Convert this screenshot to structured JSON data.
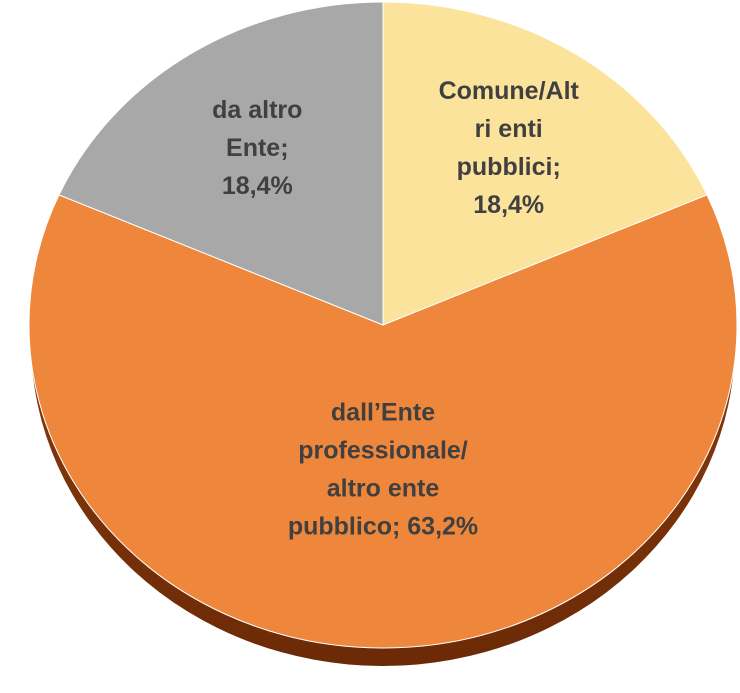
{
  "chart_data": {
    "type": "pie",
    "labels": [
      [
        "Comune/Alt",
        "ri enti",
        "pubblici;",
        "18,4%"
      ],
      [
        "dall’Ente",
        "professionale/",
        "altro ente",
        "pubblico; 63,2%"
      ],
      [
        "da altro",
        "Ente;",
        "18,4%"
      ]
    ],
    "values": [
      18.4,
      63.2,
      18.4
    ],
    "colors": [
      "#fbe39b",
      "#ee873c",
      "#a8a8a8"
    ]
  }
}
